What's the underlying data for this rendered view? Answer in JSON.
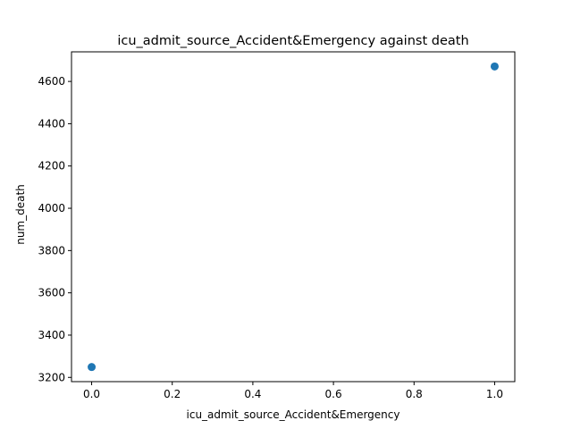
{
  "chart_data": {
    "type": "scatter",
    "title": "icu_admit_source_Accident&Emergency against death",
    "xlabel": "icu_admit_source_Accident&Emergency",
    "ylabel": "num_death",
    "xlim": [
      -0.05,
      1.05
    ],
    "ylim": [
      3180,
      4740
    ],
    "x_ticks": [
      0.0,
      0.2,
      0.4,
      0.6,
      0.8,
      1.0
    ],
    "x_tick_labels": [
      "0.0",
      "0.2",
      "0.4",
      "0.6",
      "0.8",
      "1.0"
    ],
    "y_ticks": [
      3200,
      3400,
      3600,
      3800,
      4000,
      4200,
      4400,
      4600
    ],
    "y_tick_labels": [
      "3200",
      "3400",
      "3600",
      "3800",
      "4000",
      "4200",
      "4400",
      "4600"
    ],
    "grid": false,
    "color": "#1f77b4",
    "points": [
      {
        "x": 0,
        "y": 3249
      },
      {
        "x": 1,
        "y": 4671
      }
    ]
  }
}
